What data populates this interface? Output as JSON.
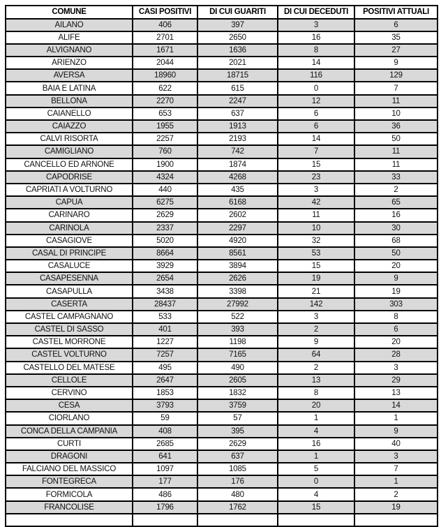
{
  "table": {
    "columns": [
      "COMUNE",
      "CASI POSITIVI",
      "DI CUI GUARITI",
      "DI CUI DECEDUTI",
      "POSITIVI ATTUALI"
    ],
    "rows": [
      [
        "AILANO",
        "406",
        "397",
        "3",
        "6"
      ],
      [
        "ALIFE",
        "2701",
        "2650",
        "16",
        "35"
      ],
      [
        "ALVIGNANO",
        "1671",
        "1636",
        "8",
        "27"
      ],
      [
        "ARIENZO",
        "2044",
        "2021",
        "14",
        "9"
      ],
      [
        "AVERSA",
        "18960",
        "18715",
        "116",
        "129"
      ],
      [
        "BAIA E LATINA",
        "622",
        "615",
        "0",
        "7"
      ],
      [
        "BELLONA",
        "2270",
        "2247",
        "12",
        "11"
      ],
      [
        "CAIANELLO",
        "653",
        "637",
        "6",
        "10"
      ],
      [
        "CAIAZZO",
        "1955",
        "1913",
        "6",
        "36"
      ],
      [
        "CALVI RISORTA",
        "2257",
        "2193",
        "14",
        "50"
      ],
      [
        "CAMIGLIANO",
        "760",
        "742",
        "7",
        "11"
      ],
      [
        "CANCELLO ED ARNONE",
        "1900",
        "1874",
        "15",
        "11"
      ],
      [
        "CAPODRISE",
        "4324",
        "4268",
        "23",
        "33"
      ],
      [
        "CAPRIATI A VOLTURNO",
        "440",
        "435",
        "3",
        "2"
      ],
      [
        "CAPUA",
        "6275",
        "6168",
        "42",
        "65"
      ],
      [
        "CARINARO",
        "2629",
        "2602",
        "11",
        "16"
      ],
      [
        "CARINOLA",
        "2337",
        "2297",
        "10",
        "30"
      ],
      [
        "CASAGIOVE",
        "5020",
        "4920",
        "32",
        "68"
      ],
      [
        "CASAL DI PRINCIPE",
        "8664",
        "8561",
        "53",
        "50"
      ],
      [
        "CASALUCE",
        "3929",
        "3894",
        "15",
        "20"
      ],
      [
        "CASAPESENNA",
        "2654",
        "2626",
        "19",
        "9"
      ],
      [
        "CASAPULLA",
        "3438",
        "3398",
        "21",
        "19"
      ],
      [
        "CASERTA",
        "28437",
        "27992",
        "142",
        "303"
      ],
      [
        "CASTEL CAMPAGNANO",
        "533",
        "522",
        "3",
        "8"
      ],
      [
        "CASTEL DI SASSO",
        "401",
        "393",
        "2",
        "6"
      ],
      [
        "CASTEL MORRONE",
        "1227",
        "1198",
        "9",
        "20"
      ],
      [
        "CASTEL VOLTURNO",
        "7257",
        "7165",
        "64",
        "28"
      ],
      [
        "CASTELLO DEL MATESE",
        "495",
        "490",
        "2",
        "3"
      ],
      [
        "CELLOLE",
        "2647",
        "2605",
        "13",
        "29"
      ],
      [
        "CERVINO",
        "1853",
        "1832",
        "8",
        "13"
      ],
      [
        "CESA",
        "3793",
        "3759",
        "20",
        "14"
      ],
      [
        "CIORLANO",
        "59",
        "57",
        "1",
        "1"
      ],
      [
        "CONCA DELLA CAMPANIA",
        "408",
        "395",
        "4",
        "9"
      ],
      [
        "CURTI",
        "2685",
        "2629",
        "16",
        "40"
      ],
      [
        "DRAGONI",
        "641",
        "637",
        "1",
        "3"
      ],
      [
        "FALCIANO DEL MASSICO",
        "1097",
        "1085",
        "5",
        "7"
      ],
      [
        "FONTEGRECA",
        "177",
        "176",
        "0",
        "1"
      ],
      [
        "FORMICOLA",
        "486",
        "480",
        "4",
        "2"
      ],
      [
        "FRANCOLISE",
        "1796",
        "1762",
        "15",
        "19"
      ]
    ],
    "styling": {
      "shade_color": "#d9d9d9",
      "border_color": "#000000",
      "header_background": "#ffffff",
      "text_color": "#111111"
    }
  }
}
